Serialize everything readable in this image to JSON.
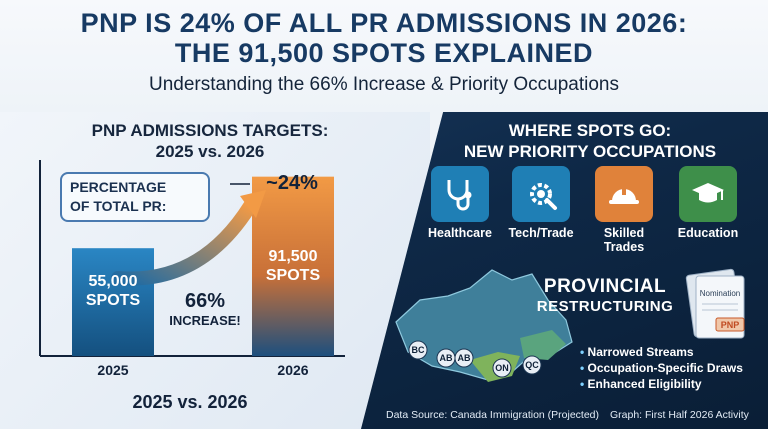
{
  "header": {
    "title_line1": "PNP IS 24% OF ALL PR ADMISSIONS IN 2026:",
    "title_line2": "THE 91,500 SPOTS EXPLAINED",
    "subtitle": "Understanding the 66% Increase & Priority Occupations"
  },
  "chart": {
    "heading_line1": "PNP ADMISSIONS TARGETS:",
    "heading_line2": "2025 vs. 2026",
    "percentage_box_line1": "PERCENTAGE",
    "percentage_box_line2": "OF TOTAL PR:",
    "percentage_value": "~24%",
    "increase_pct": "66%",
    "increase_text": "INCREASE!",
    "footer": "2025 vs. 2026"
  },
  "chart_data": {
    "type": "bar",
    "categories": [
      "2025",
      "2026"
    ],
    "values": [
      55000,
      91500
    ],
    "data_labels": [
      {
        "value": "55,000",
        "unit": "SPOTS"
      },
      {
        "value": "91,500",
        "unit": "SPOTS"
      }
    ],
    "ylim": [
      0,
      100000
    ],
    "colors": [
      "#1e6aa3",
      "#e8863a"
    ]
  },
  "occupations": {
    "heading_line1": "WHERE SPOTS GO:",
    "heading_line2": "NEW PRIORITY OCCUPATIONS",
    "items": [
      {
        "label": "Healthcare",
        "icon": "stethoscope-icon",
        "color": "#1f7fb5"
      },
      {
        "label": "Tech/Trade",
        "icon": "gear-wrench-icon",
        "color": "#1f7fb5"
      },
      {
        "label": "Skilled",
        "label2": "Trades",
        "icon": "hard-hat-icon",
        "color": "#e0823a"
      },
      {
        "label": "Education",
        "icon": "graduation-cap-icon",
        "color": "#3e8f4a"
      }
    ]
  },
  "provincial": {
    "title_line1": "PROVINCIAL",
    "title_line2": "RESTRUCTURING",
    "document_title": "Nomination",
    "document_stamp": "PNP",
    "provinces": [
      "BC",
      "AB",
      "AB",
      "ON",
      "QC"
    ],
    "bullets": [
      "Narrowed Streams",
      "Occupation-Specific Draws",
      "Enhanced Eligibility"
    ]
  },
  "footer": {
    "source": "Data Source: Canada Immigration (Projected)",
    "graph_note": "Graph: First Half 2026 Activity"
  }
}
